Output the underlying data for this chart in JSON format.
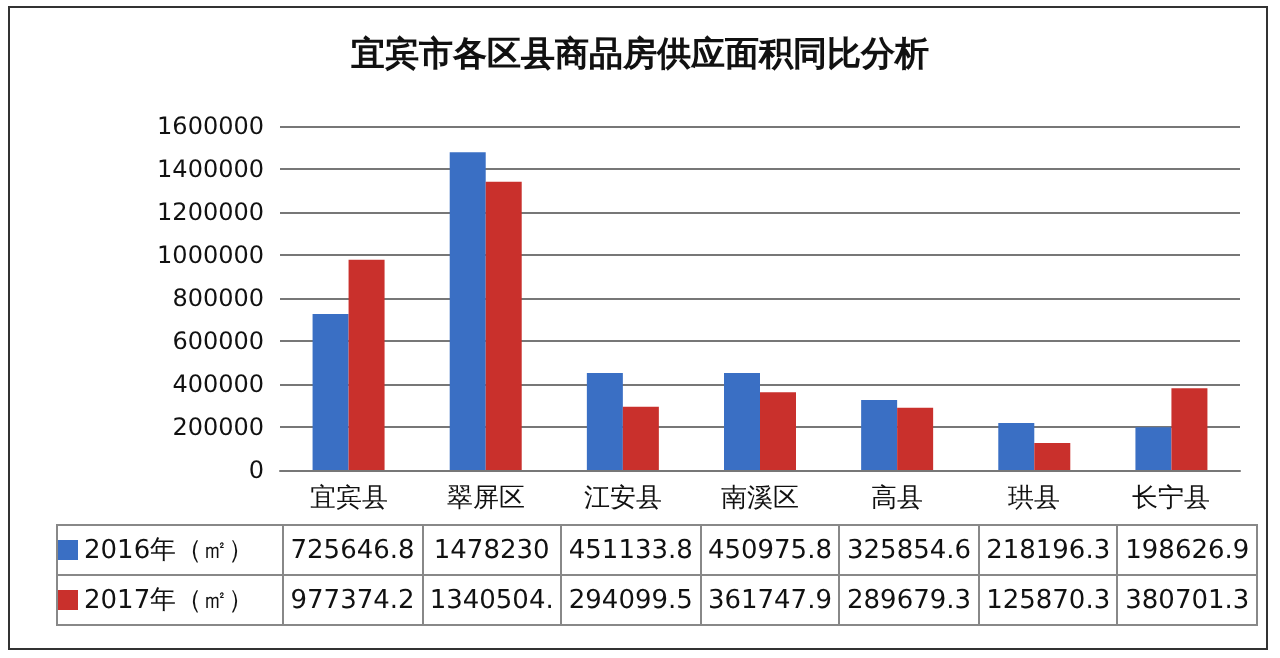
{
  "chart_data": {
    "type": "bar",
    "title": "宜宾市各区县商品房供应面积同比分析",
    "categories": [
      "宜宾县",
      "翠屏区",
      "江安县",
      "南溪区",
      "高县",
      "珙县",
      "长宁县"
    ],
    "series": [
      {
        "name": "2016年（㎡）",
        "color": "#3a6fc4",
        "values": [
          725646.8,
          1478230,
          451133.8,
          450975.8,
          325854.6,
          218196.3,
          198626.9
        ],
        "value_labels": [
          "725646.8",
          "1478230",
          "451133.8",
          "450975.8",
          "325854.6",
          "218196.3",
          "198626.9"
        ]
      },
      {
        "name": "2017年（㎡）",
        "color": "#c9302c",
        "values": [
          977374.2,
          1340504,
          294099.5,
          361747.9,
          289679.3,
          125870.3,
          380701.3
        ],
        "value_labels": [
          "977374.2",
          "1340504.",
          "294099.5",
          "361747.9",
          "289679.3",
          "125870.3",
          "380701.3"
        ]
      }
    ],
    "ylim": [
      0,
      1600000
    ],
    "yticks": [
      0,
      200000,
      400000,
      600000,
      800000,
      1000000,
      1200000,
      1400000,
      1600000
    ],
    "grid": "y",
    "legend": "bottom"
  }
}
